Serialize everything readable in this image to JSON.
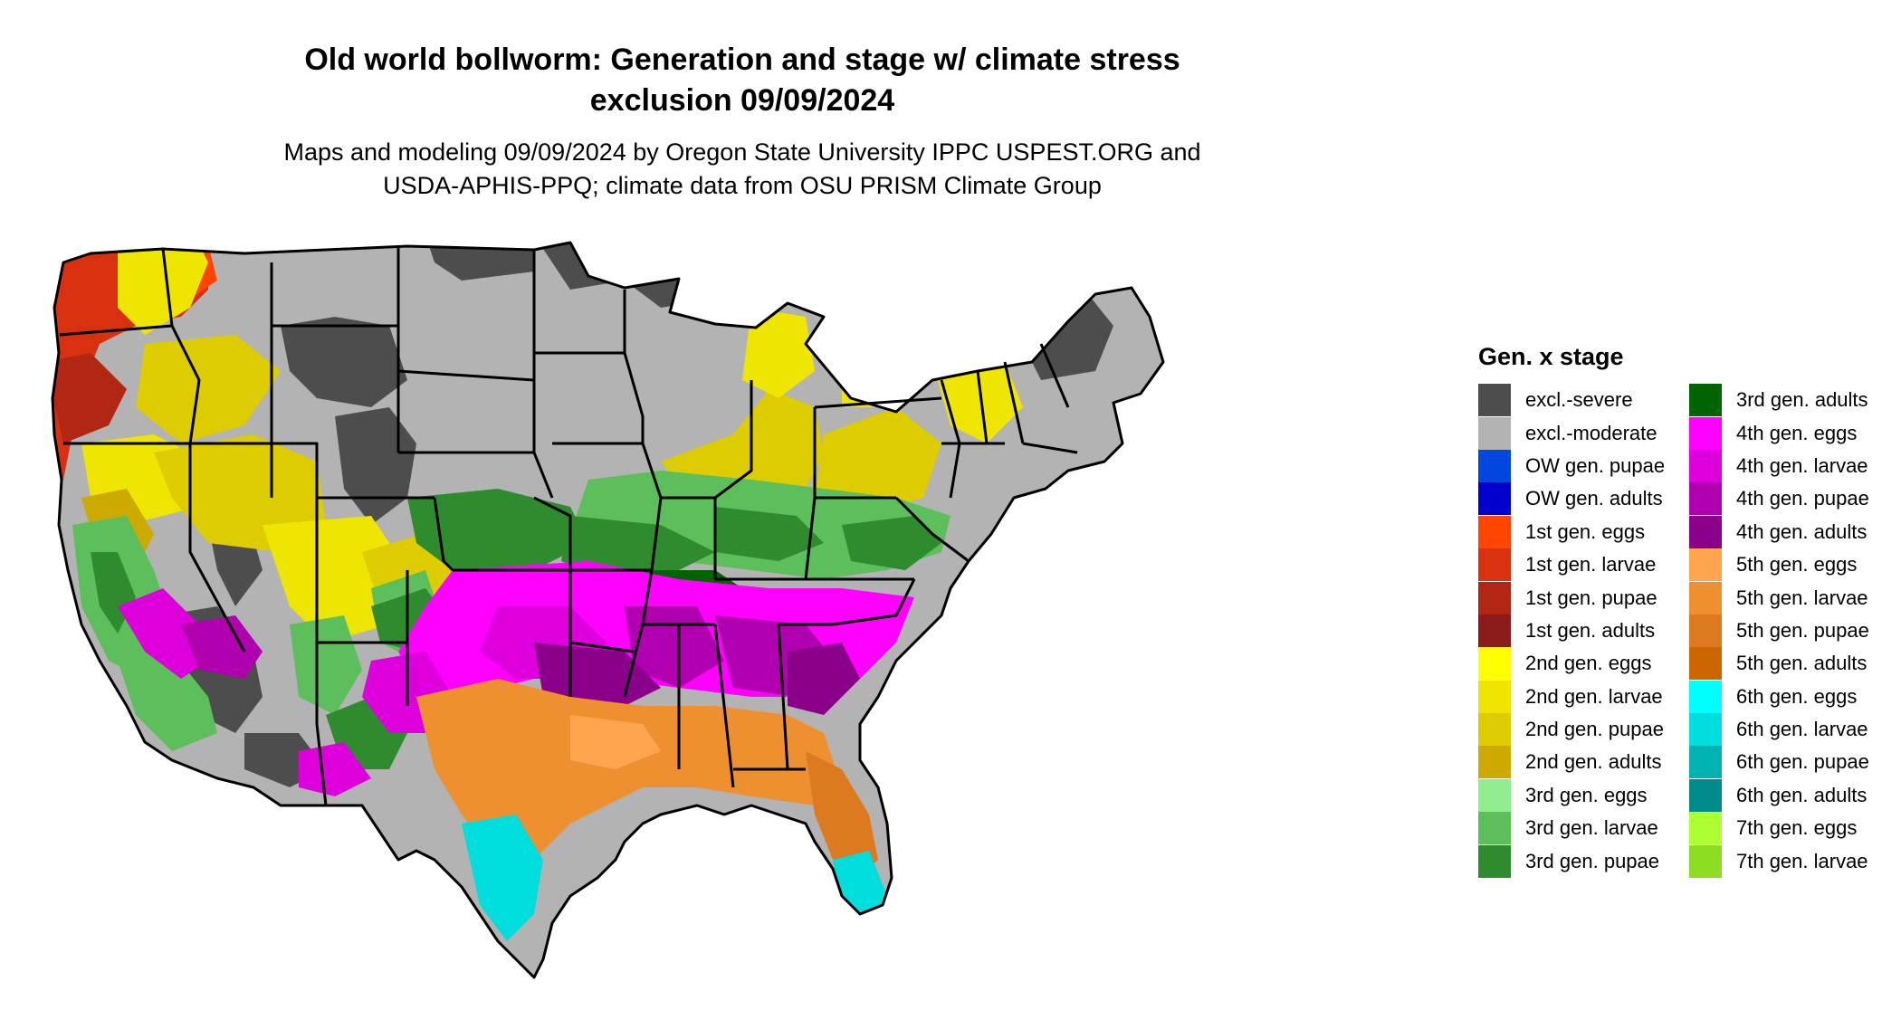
{
  "title_line1": "Old world bollworm: Generation and stage w/ climate stress",
  "title_line2": "exclusion 09/09/2024",
  "subtitle_line1": "Maps and modeling 09/09/2024 by Oregon State University IPPC USPEST.ORG and",
  "subtitle_line2": "USDA-APHIS-PPQ; climate data from OSU PRISM Climate Group",
  "legend": {
    "title": "Gen. x stage",
    "items": [
      {
        "label": "excl.-severe",
        "color": "#4d4d4d"
      },
      {
        "label": "excl.-moderate",
        "color": "#b3b3b3"
      },
      {
        "label": "OW gen. pupae",
        "color": "#0047e0"
      },
      {
        "label": "OW gen. adults",
        "color": "#0000cc"
      },
      {
        "label": "1st gen. eggs",
        "color": "#ff4500"
      },
      {
        "label": "1st gen. larvae",
        "color": "#d93010"
      },
      {
        "label": "1st gen. pupae",
        "color": "#b22614"
      },
      {
        "label": "1st gen. adults",
        "color": "#8b1a1a"
      },
      {
        "label": "2nd gen. eggs",
        "color": "#ffff00"
      },
      {
        "label": "2nd gen. larvae",
        "color": "#eee600"
      },
      {
        "label": "2nd gen. pupae",
        "color": "#ddcc00"
      },
      {
        "label": "2nd gen. adults",
        "color": "#ccaa00"
      },
      {
        "label": "3rd gen. eggs",
        "color": "#90ee90"
      },
      {
        "label": "3rd gen. larvae",
        "color": "#5cbf5c"
      },
      {
        "label": "3rd gen. pupae",
        "color": "#2e8b2e"
      },
      {
        "label": "3rd gen. adults",
        "color": "#006400"
      },
      {
        "label": "4th gen. eggs",
        "color": "#ff00ff"
      },
      {
        "label": "4th gen. larvae",
        "color": "#dd00dd"
      },
      {
        "label": "4th gen. pupae",
        "color": "#b000b0"
      },
      {
        "label": "4th gen. adults",
        "color": "#8b008b"
      },
      {
        "label": "5th gen. eggs",
        "color": "#ffa54f"
      },
      {
        "label": "5th gen. larvae",
        "color": "#ee9030"
      },
      {
        "label": "5th gen. pupae",
        "color": "#dd7a20"
      },
      {
        "label": "5th gen. adults",
        "color": "#cc6600"
      },
      {
        "label": "6th gen. eggs",
        "color": "#00ffff"
      },
      {
        "label": "6th gen. larvae",
        "color": "#00dddd"
      },
      {
        "label": "6th gen. pupae",
        "color": "#00b2b2"
      },
      {
        "label": "6th gen. adults",
        "color": "#008b8b"
      },
      {
        "label": "7th gen. eggs",
        "color": "#adff2f"
      },
      {
        "label": "7th gen. larvae",
        "color": "#8cdd22"
      }
    ]
  }
}
